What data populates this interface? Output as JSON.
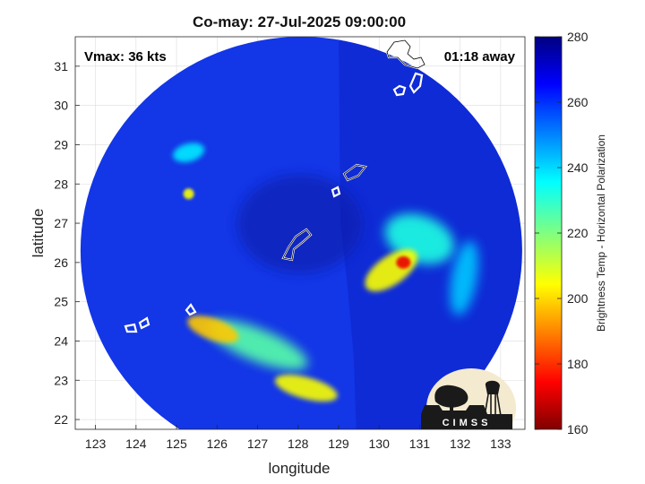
{
  "title": "Co-may: 27-Jul-2025 09:00:00",
  "annotations": {
    "vmax": "Vmax: 36 kts",
    "away": "01:18 away"
  },
  "logo": {
    "text": "CIMSS"
  },
  "colors": {
    "background_field": "#1336e6",
    "coast": "#ffffff"
  },
  "chart_data": {
    "type": "heatmap",
    "title": "Co-may: 27-Jul-2025 09:00:00",
    "xlabel": "longitude",
    "ylabel": "latitude",
    "xlim": [
      122.5,
      133.6
    ],
    "ylim": [
      21.75,
      31.75
    ],
    "xticks": [
      123,
      124,
      125,
      126,
      127,
      128,
      129,
      130,
      131,
      132,
      133
    ],
    "yticks": [
      22,
      23,
      24,
      25,
      26,
      27,
      28,
      29,
      30,
      31
    ],
    "grid": true,
    "colorbar": {
      "label": "Brightness Temp - Horizontal Polarization",
      "range": [
        160,
        280
      ],
      "ticks": [
        160,
        180,
        200,
        220,
        240,
        260,
        280
      ],
      "colormap": "jet"
    },
    "swath": {
      "center_lon": 128.08,
      "center_lat": 26.3,
      "radius_deg": 5.45
    },
    "features": [
      {
        "name": "storm core",
        "lon": 130.6,
        "lat": 26.0,
        "value": 172
      },
      {
        "name": "storm inner band",
        "lon": 130.3,
        "lat": 25.8,
        "value": 205
      },
      {
        "name": "eastern band",
        "lon": 131.0,
        "lat": 26.6,
        "value": 232
      },
      {
        "name": "outer eastern band",
        "lon": 132.1,
        "lat": 25.6,
        "value": 242
      },
      {
        "name": "southwest band west",
        "lon": 125.9,
        "lat": 24.3,
        "value": 198
      },
      {
        "name": "southwest band mid",
        "lon": 127.0,
        "lat": 23.9,
        "value": 225
      },
      {
        "name": "southwest band east",
        "lon": 128.2,
        "lat": 22.8,
        "value": 205
      },
      {
        "name": "northwest cell",
        "lon": 125.3,
        "lat": 28.8,
        "value": 238
      },
      {
        "name": "small cell",
        "lon": 125.3,
        "lat": 27.75,
        "value": 205
      }
    ]
  }
}
